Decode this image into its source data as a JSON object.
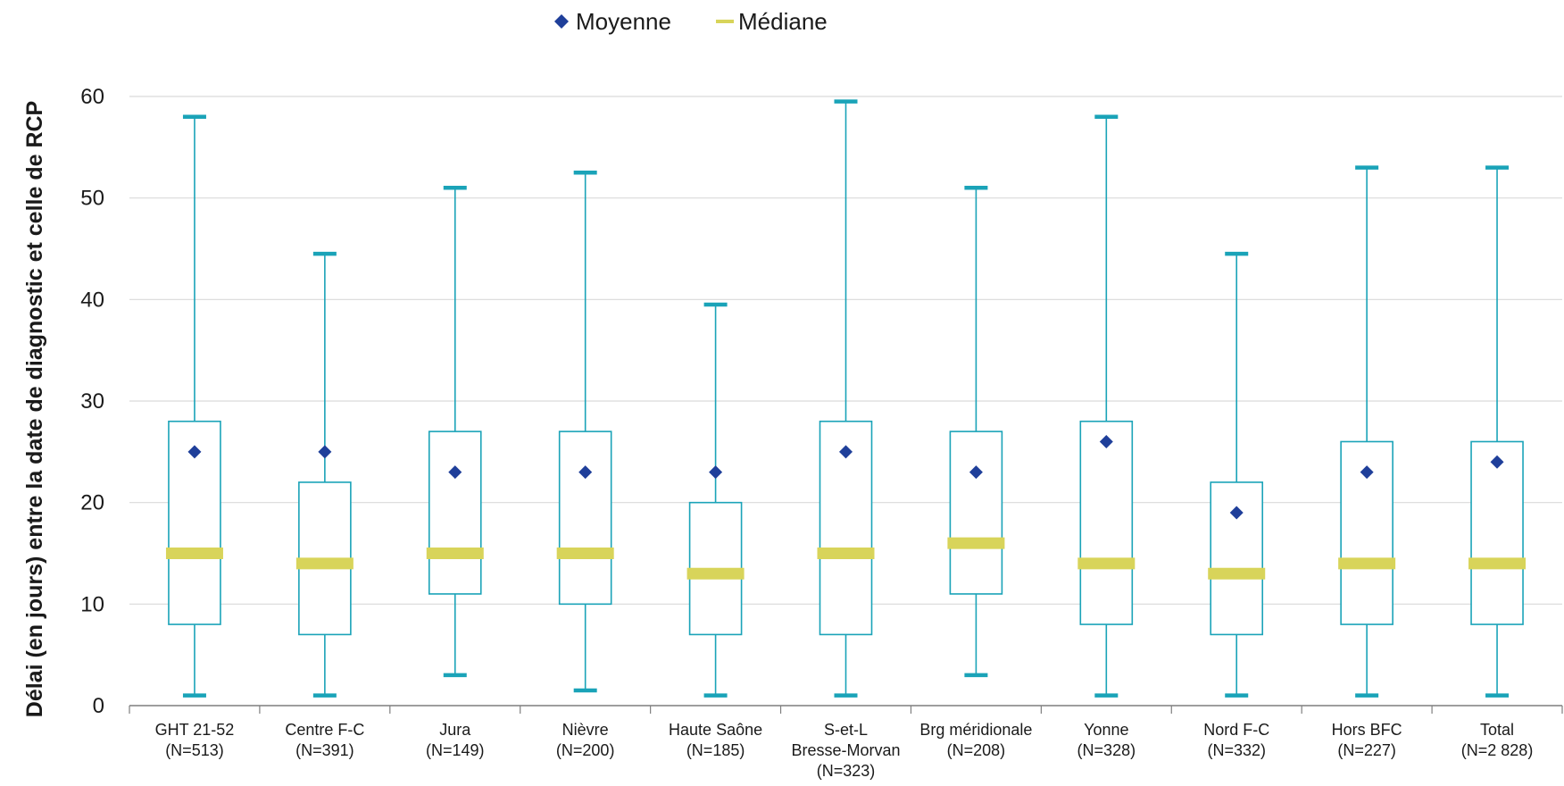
{
  "colors": {
    "box": "#1aa3b8",
    "whisker": "#1aa3b8",
    "cap": "#1aa3b8",
    "median": "#d8d45a",
    "mean": "#1f3f9a",
    "grid": "#d9d9d9",
    "axis": "#7f7f7f"
  },
  "chart_data": {
    "type": "boxplot",
    "title": "",
    "ylabel": "Délai (en jours) entre la date de diagnostic et celle de RCP",
    "xlabel": "",
    "ylim": [
      0,
      60
    ],
    "yticks": [
      0,
      10,
      20,
      30,
      40,
      50,
      60
    ],
    "grid": true,
    "legend": {
      "position": "top-center",
      "entries": [
        {
          "name": "Moyenne",
          "marker": "diamond"
        },
        {
          "name": "Médiane",
          "marker": "bar"
        }
      ]
    },
    "categories": [
      {
        "label": [
          "GHT 21-52",
          "(N=513)"
        ],
        "min": 1,
        "q1": 8,
        "median": 15,
        "q3": 28,
        "max": 58,
        "mean": 25
      },
      {
        "label": [
          "Centre F-C",
          "(N=391)"
        ],
        "min": 1,
        "q1": 7,
        "median": 14,
        "q3": 22,
        "max": 44.5,
        "mean": 25
      },
      {
        "label": [
          "Jura",
          "(N=149)"
        ],
        "min": 3,
        "q1": 11,
        "median": 15,
        "q3": 27,
        "max": 51,
        "mean": 23
      },
      {
        "label": [
          "Nièvre",
          "(N=200)"
        ],
        "min": 1.5,
        "q1": 10,
        "median": 15,
        "q3": 27,
        "max": 52.5,
        "mean": 23
      },
      {
        "label": [
          "Haute Saône",
          "(N=185)"
        ],
        "min": 1,
        "q1": 7,
        "median": 13,
        "q3": 20,
        "max": 39.5,
        "mean": 23
      },
      {
        "label": [
          "S-et-L",
          "Bresse-Morvan",
          "(N=323)"
        ],
        "min": 1,
        "q1": 7,
        "median": 15,
        "q3": 28,
        "max": 59.5,
        "mean": 25
      },
      {
        "label": [
          "Brg méridionale",
          "(N=208)"
        ],
        "min": 3,
        "q1": 11,
        "median": 16,
        "q3": 27,
        "max": 51,
        "mean": 23
      },
      {
        "label": [
          "Yonne",
          "(N=328)"
        ],
        "min": 1,
        "q1": 8,
        "median": 14,
        "q3": 28,
        "max": 58,
        "mean": 26
      },
      {
        "label": [
          "Nord F-C",
          "(N=332)"
        ],
        "min": 1,
        "q1": 7,
        "median": 13,
        "q3": 22,
        "max": 44.5,
        "mean": 19
      },
      {
        "label": [
          "Hors BFC",
          "(N=227)"
        ],
        "min": 1,
        "q1": 8,
        "median": 14,
        "q3": 26,
        "max": 53,
        "mean": 23
      },
      {
        "label": [
          "Total",
          "(N=2 828)"
        ],
        "min": 1,
        "q1": 8,
        "median": 14,
        "q3": 26,
        "max": 53,
        "mean": 24
      }
    ]
  }
}
